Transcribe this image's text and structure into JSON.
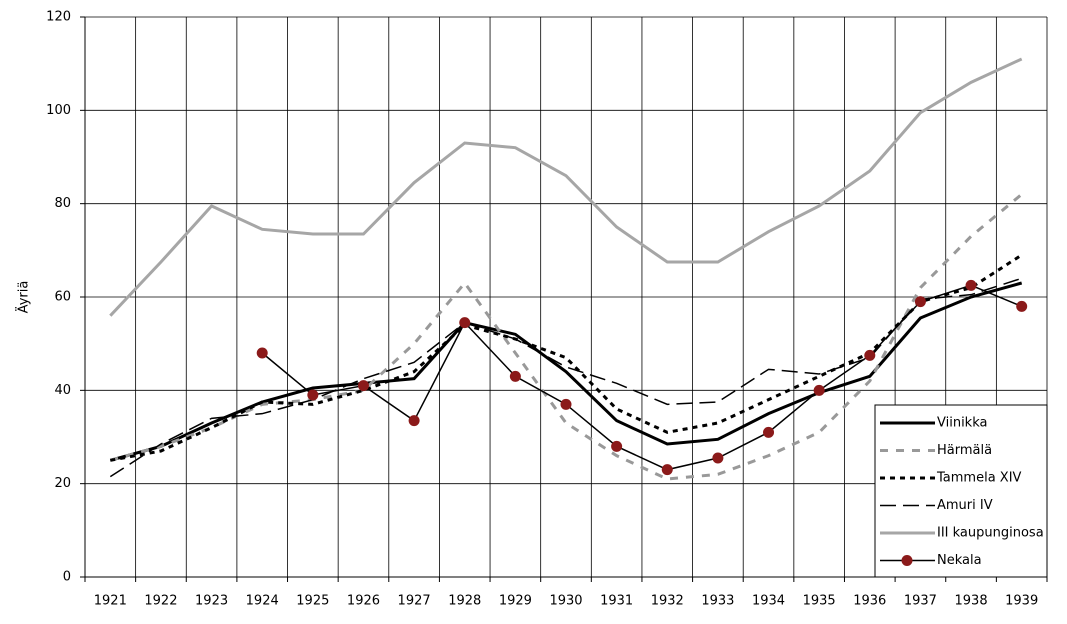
{
  "chart_data": {
    "type": "line",
    "ylabel": "Äyriä",
    "categories": [
      "1921",
      "1922",
      "1923",
      "1924",
      "1925",
      "1926",
      "1927",
      "1928",
      "1929",
      "1930",
      "1931",
      "1932",
      "1933",
      "1934",
      "1935",
      "1936",
      "1937",
      "1938",
      "1939"
    ],
    "ylim": [
      0,
      120
    ],
    "yticks": [
      0,
      20,
      40,
      60,
      80,
      100,
      120
    ],
    "grid": true,
    "legend": "lower right",
    "series": [
      {
        "name": "Viinikka",
        "color": "#000000",
        "width": 3,
        "dash": "none",
        "values": [
          25,
          28,
          33,
          37.5,
          40.5,
          41.5,
          42.5,
          54.5,
          52,
          44,
          33.5,
          28.5,
          29.5,
          35,
          39.5,
          43,
          55.5,
          60,
          63
        ]
      },
      {
        "name": "Härmälä",
        "color": "#999999",
        "width": 3,
        "dash": "8 8",
        "values": [
          25,
          28,
          32,
          37,
          38,
          40,
          50,
          63,
          48,
          33,
          26,
          21,
          22,
          26,
          31,
          42,
          62,
          73,
          82
        ]
      },
      {
        "name": "Tammela XIV",
        "color": "#000000",
        "width": 3,
        "dash": "5 5",
        "values": [
          25,
          27,
          32,
          37.5,
          37,
          40,
          44,
          54,
          51,
          47,
          36,
          31,
          33,
          38,
          43,
          48,
          59,
          62,
          69
        ]
      },
      {
        "name": "Amuri IV",
        "color": "#000000",
        "width": 1.5,
        "dash": "16 7",
        "values": [
          21.5,
          28.5,
          34,
          35,
          38,
          42.5,
          46,
          54.5,
          51,
          45,
          41.5,
          37,
          37.5,
          44.5,
          43.5,
          47,
          59.5,
          60.5,
          64
        ]
      },
      {
        "name": "III kaupunginosa",
        "color": "#a6a6a6",
        "width": 3,
        "dash": "none",
        "values": [
          56,
          67.5,
          79.5,
          74.5,
          73.5,
          73.5,
          84.5,
          93,
          92,
          86,
          75,
          67.5,
          67.5,
          74,
          79.5,
          87,
          99.5,
          106,
          111
        ]
      },
      {
        "name": "Nekala",
        "color": "#000000",
        "width": 1.5,
        "dash": "none",
        "marker": "#8b1a1a",
        "values": [
          null,
          null,
          null,
          48,
          39,
          41,
          33.5,
          54.5,
          43,
          37,
          28,
          23,
          25.5,
          31,
          40,
          47.5,
          59,
          62.5,
          58
        ]
      }
    ]
  }
}
